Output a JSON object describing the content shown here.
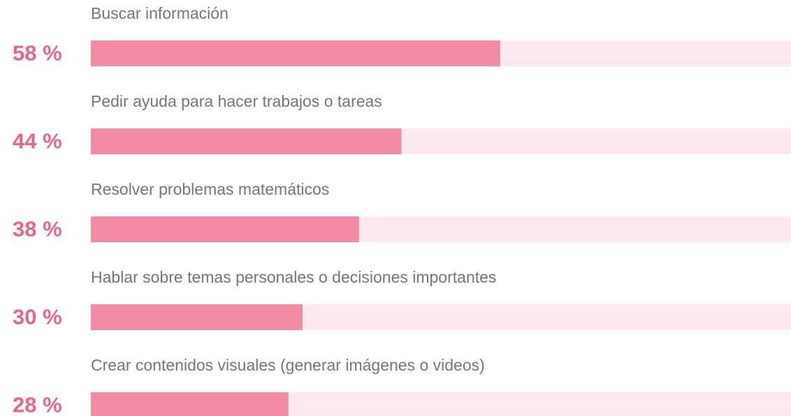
{
  "chart_data": {
    "type": "bar",
    "orientation": "horizontal",
    "categories": [
      "Buscar información",
      "Pedir ayuda para hacer trabajos o tareas",
      "Resolver problemas matemáticos",
      "Hablar sobre temas personales o decisiones importantes",
      "Crear contenidos visuales (generar imágenes o videos)"
    ],
    "values": [
      58,
      44,
      38,
      30,
      28
    ],
    "value_labels": [
      "58 %",
      "44 %",
      "38 %",
      "30 %",
      "28 %"
    ],
    "xlim": [
      0,
      100
    ],
    "color": "#f28ca5",
    "track_color": "#fde8ee",
    "label_color": "#e8668a"
  }
}
